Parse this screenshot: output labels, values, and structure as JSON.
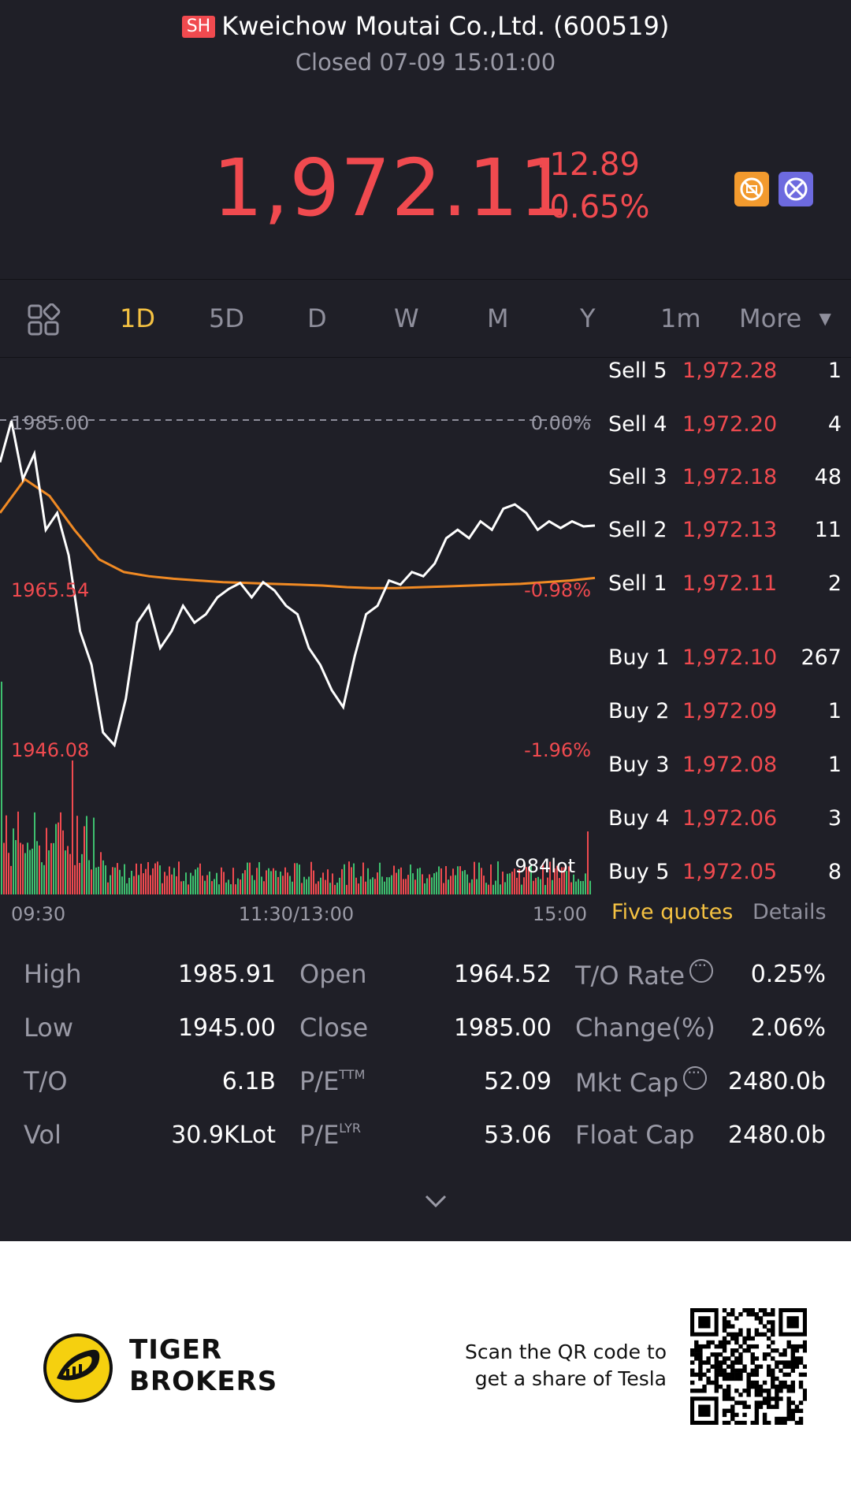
{
  "header": {
    "exchange_badge": "SH",
    "title": "Kweichow Moutai Co.,Ltd. (600519)",
    "status": "Closed 07-09 15:01:00",
    "price": "1,972.11",
    "change_abs": "-12.89",
    "change_pct": "-0.65%",
    "icons": [
      "no-margin-icon",
      "no-short-icon"
    ],
    "colors": {
      "down": "#f04a4f",
      "accent": "#f5c242",
      "background": "#1f1f27"
    }
  },
  "tabs": {
    "items": [
      "1D",
      "5D",
      "D",
      "W",
      "M",
      "Y",
      "1m"
    ],
    "active": "1D",
    "more": "More",
    "more_icon": "▼"
  },
  "chart": {
    "labels": {
      "ref_price": "1985.00",
      "ref_pct": "0.00%",
      "mid_price": "1965.54",
      "mid_pct": "-0.98%",
      "low_price": "1946.08",
      "low_pct": "-1.96%",
      "volume_label": "984lot"
    },
    "time_axis": [
      "09:30",
      "11:30/13:00",
      "15:00"
    ]
  },
  "chart_data": {
    "type": "line",
    "title": "",
    "xlabel": "",
    "ylabel": "",
    "x_ticks": [
      "09:30",
      "11:30/13:00",
      "15:00"
    ],
    "ylim": [
      1946.08,
      1985.0
    ],
    "reference_line": {
      "value": 1985.0,
      "pct": "0.00%"
    },
    "series": [
      {
        "name": "",
        "color": "#ffffff",
        "values": [
          1980,
          1984.9,
          1978,
          1981,
          1972,
          1974,
          1969,
          1960,
          1956,
          1948,
          1946.5,
          1952,
          1961,
          1963,
          1958,
          1960,
          1963,
          1961,
          1962,
          1964,
          1965,
          1965.7,
          1964,
          1965.8,
          1964.8,
          1963,
          1962,
          1958,
          1956,
          1953,
          1951,
          1957,
          1962,
          1963,
          1966,
          1965.5,
          1967,
          1966.5,
          1968,
          1971,
          1972,
          1971,
          1973,
          1972,
          1974.5,
          1975,
          1974,
          1972,
          1973,
          1972.2,
          1973,
          1972.4,
          1972.5
        ]
      },
      {
        "name": "",
        "color": "#f08a24",
        "values": [
          1974,
          1978,
          1976,
          1972,
          1968.5,
          1967,
          1966.5,
          1966.2,
          1966,
          1965.8,
          1965.7,
          1965.6,
          1965.5,
          1965.4,
          1965.2,
          1965.1,
          1965.1,
          1965.2,
          1965.3,
          1965.4,
          1965.5,
          1965.6,
          1965.8,
          1966,
          1966.3
        ]
      }
    ],
    "volume": {
      "label": "984lot",
      "colors": {
        "up": "#3ec06f",
        "down": "#f04a4f"
      }
    }
  },
  "order_book": {
    "sell": [
      {
        "label": "Sell 5",
        "price": "1,972.28",
        "vol": "1"
      },
      {
        "label": "Sell 4",
        "price": "1,972.20",
        "vol": "4"
      },
      {
        "label": "Sell 3",
        "price": "1,972.18",
        "vol": "48"
      },
      {
        "label": "Sell 2",
        "price": "1,972.13",
        "vol": "11"
      },
      {
        "label": "Sell 1",
        "price": "1,972.11",
        "vol": "2"
      }
    ],
    "buy": [
      {
        "label": "Buy 1",
        "price": "1,972.10",
        "vol": "267"
      },
      {
        "label": "Buy 2",
        "price": "1,972.09",
        "vol": "1"
      },
      {
        "label": "Buy 3",
        "price": "1,972.08",
        "vol": "1"
      },
      {
        "label": "Buy 4",
        "price": "1,972.06",
        "vol": "3"
      },
      {
        "label": "Buy 5",
        "price": "1,972.05",
        "vol": "8"
      }
    ],
    "tab_five": "Five quotes",
    "tab_details": "Details"
  },
  "stats": {
    "high_label": "High",
    "high": "1985.91",
    "low_label": "Low",
    "low": "1945.00",
    "to_label": "T/O",
    "to": "6.1B",
    "vol_label": "Vol",
    "vol": "30.9KLot",
    "open_label": "Open",
    "open": "1964.52",
    "close_label": "Close",
    "close": "1985.00",
    "pe_label": "P/E",
    "pe_ttm_sup": "TTM",
    "pe_ttm": "52.09",
    "pe_lyr_sup": "LYR",
    "pe_lyr": "53.06",
    "to_rate_label": "T/O Rate",
    "to_rate": "0.25%",
    "change_label": "Change(%)",
    "change": "2.06%",
    "mkt_cap_label": "Mkt Cap",
    "mkt_cap": "2480.0b",
    "float_cap_label": "Float Cap",
    "float_cap": "2480.0b"
  },
  "footer": {
    "brand_line1": "TIGER",
    "brand_line2": "BROKERS",
    "promo_line1": "Scan the QR code to",
    "promo_line2": "get a share of Tesla"
  }
}
